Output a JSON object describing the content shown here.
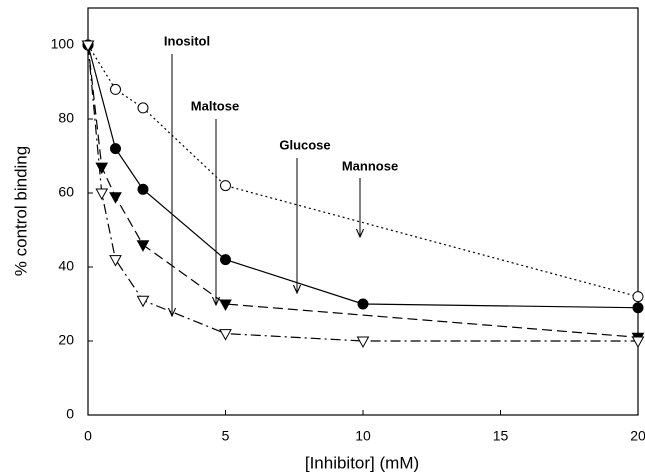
{
  "chart_data": {
    "type": "line",
    "xlabel": "[Inhibitor] (mM)",
    "ylabel": "% control binding",
    "xlim": [
      0,
      20
    ],
    "xticks": [
      0,
      5,
      10,
      15,
      20
    ],
    "ylim": [
      0,
      110
    ],
    "yticks": [
      0,
      20,
      40,
      60,
      80,
      100
    ],
    "series": [
      {
        "name": "Mannose",
        "color": "#000000",
        "marker": "circle",
        "filled": false,
        "linestyle": "dotted",
        "x": [
          0,
          1,
          2,
          5,
          20
        ],
        "values": [
          100,
          88,
          83,
          62,
          32
        ]
      },
      {
        "name": "Glucose",
        "color": "#000000",
        "marker": "circle",
        "filled": true,
        "linestyle": "solid",
        "x": [
          0,
          1,
          2,
          5,
          10,
          20
        ],
        "values": [
          100,
          72,
          61,
          42,
          30,
          29
        ]
      },
      {
        "name": "Maltose",
        "color": "#000000",
        "marker": "triangle-down",
        "filled": true,
        "linestyle": "dashed",
        "x": [
          0,
          0.5,
          1,
          2,
          5,
          20
        ],
        "values": [
          100,
          67,
          59,
          46,
          30,
          21
        ]
      },
      {
        "name": "Inositol",
        "color": "#000000",
        "marker": "triangle-down",
        "filled": false,
        "linestyle": "dashdot",
        "x": [
          0,
          0.5,
          1,
          2,
          5,
          10,
          20
        ],
        "values": [
          100,
          60,
          42,
          31,
          22,
          20,
          20
        ]
      }
    ]
  }
}
